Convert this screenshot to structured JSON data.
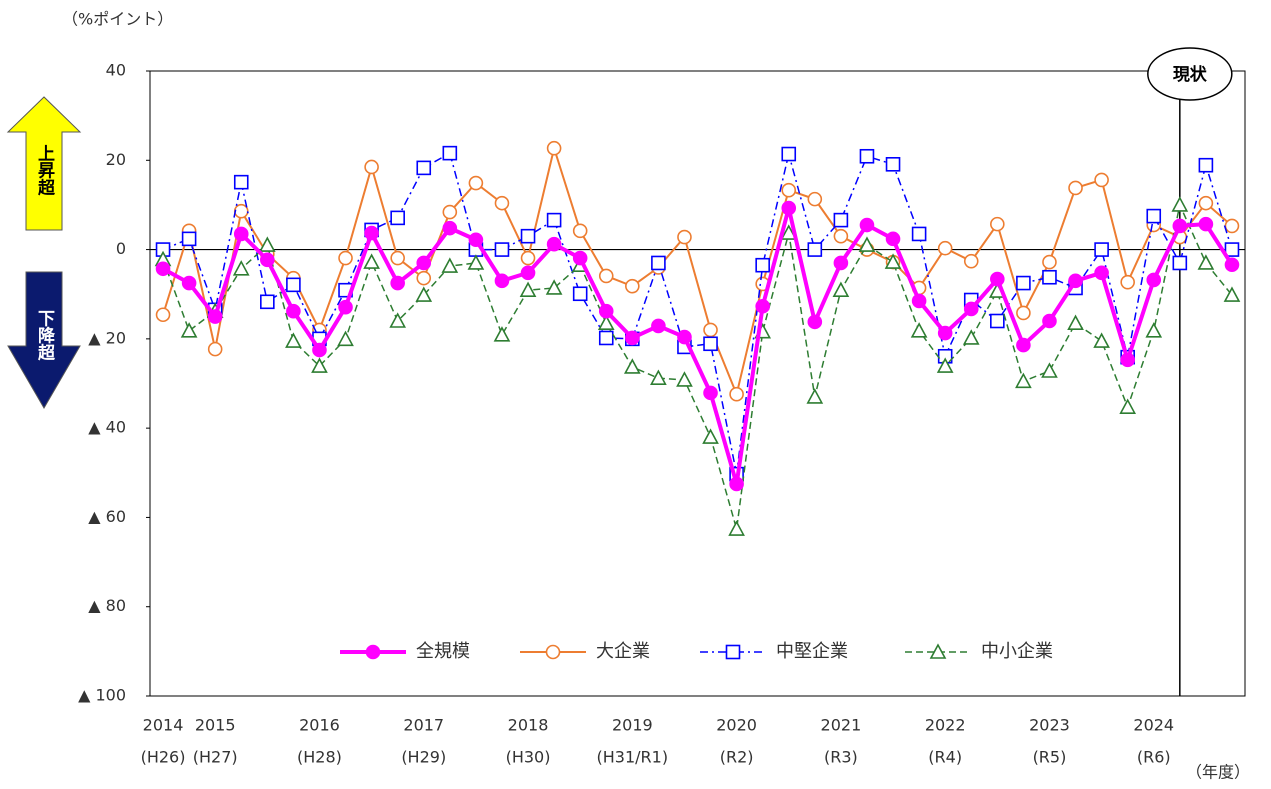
{
  "chart_data": {
    "type": "line",
    "y_label": "（%ポイント）",
    "x_label": "（年度）",
    "categories": [
      "2014",
      null,
      "2015",
      null,
      null,
      null,
      "2016",
      null,
      null,
      null,
      "2017",
      null,
      null,
      null,
      "2018",
      null,
      null,
      null,
      "2019",
      null,
      null,
      null,
      "2020",
      null,
      null,
      null,
      "2021",
      null,
      null,
      null,
      "2022",
      null,
      null,
      null,
      "2023",
      null,
      null,
      null,
      "2024",
      null,
      null,
      null
    ],
    "era_labels": [
      "(H26)",
      null,
      "(H27)",
      null,
      null,
      null,
      "(H28)",
      null,
      null,
      null,
      "(H29)",
      null,
      null,
      null,
      "(H30)",
      null,
      null,
      null,
      "(H31/R1)",
      null,
      null,
      null,
      "(R2)",
      null,
      null,
      null,
      "(R3)",
      null,
      null,
      null,
      "(R4)",
      null,
      null,
      null,
      "(R5)",
      null,
      null,
      null,
      "(R6)",
      null,
      null,
      null
    ],
    "ylim": [
      -100,
      40
    ],
    "yticks": [
      40,
      20,
      0,
      {
        "value": -20,
        "label": "▲ 20"
      },
      {
        "value": -40,
        "label": "▲ 40"
      },
      {
        "value": -60,
        "label": "▲ 60"
      },
      {
        "value": -80,
        "label": "▲ 80"
      },
      {
        "value": -100,
        "label": "▲ 100"
      }
    ],
    "zero_line": true,
    "annotation": {
      "label": "現状",
      "category_index": 39
    },
    "up_label": "上昇超",
    "down_label": "下降超",
    "legend": "bottom",
    "series": [
      {
        "name": "全規模",
        "color": "#ff00ff",
        "marker": "filled-circle",
        "dash": "solid",
        "width": 4,
        "values": [
          -4.3,
          -7.5,
          -15,
          3.5,
          -2.3,
          -13.8,
          -22.5,
          -12.9,
          3.7,
          -7.5,
          -3,
          4.8,
          2.2,
          -7,
          -5.2,
          1.2,
          -1.9,
          -13.8,
          -19.8,
          -17.1,
          -19.6,
          -32.1,
          -52.5,
          -12.7,
          9.3,
          -16.2,
          -3,
          5.5,
          2.4,
          -11.5,
          -18.7,
          -13.3,
          -6.6,
          -21.4,
          -16,
          -7,
          -5.2,
          -24.7,
          -6.8,
          5.3,
          5.7,
          -3.4
        ]
      },
      {
        "name": "大企業",
        "color": "#ed7d31",
        "marker": "open-circle",
        "dash": "solid",
        "width": 2,
        "values": [
          -14.6,
          4.2,
          -22.3,
          8.6,
          -1,
          -6.4,
          -18,
          -1.9,
          18.5,
          -1.9,
          -6.4,
          8.4,
          14.9,
          10.4,
          -1.9,
          22.7,
          4.2,
          -5.9,
          -8.2,
          -4,
          2.8,
          -18,
          -32.4,
          -7.7,
          13.3,
          11.3,
          3,
          0,
          -2.8,
          -8.6,
          0.3,
          -2.6,
          5.7,
          -14.2,
          -2.8,
          13.8,
          15.6,
          -7.3,
          5.5,
          2.8,
          10.4,
          5.3
        ]
      },
      {
        "name": "中堅企業",
        "color": "#0000ff",
        "marker": "open-square",
        "dash": "dash-dot",
        "width": 1.5,
        "values": [
          0,
          2.4,
          -13.5,
          15.1,
          -11.7,
          -7.9,
          -20,
          -9.1,
          4.4,
          7.1,
          18.3,
          21.6,
          0,
          0,
          3,
          6.6,
          -9.9,
          -19.8,
          -20,
          -3,
          -21.8,
          -21.1,
          -50.3,
          -3.5,
          21.4,
          0,
          6.6,
          20.9,
          19.1,
          3.5,
          -23.9,
          -11.3,
          -16,
          -7.5,
          -6.2,
          -8.6,
          0,
          -24.1,
          7.5,
          -3,
          18.9,
          0
        ]
      },
      {
        "name": "中小企業",
        "color": "#2e7d32",
        "marker": "open-triangle",
        "dash": "dash",
        "width": 1.5,
        "values": [
          -2.2,
          -18.2,
          -13.8,
          -4.3,
          1,
          -20.5,
          -26.1,
          -20.1,
          -2.8,
          -16,
          -10.2,
          -3.7,
          -3,
          -19.1,
          -9.1,
          -8.6,
          -3.5,
          -16.5,
          -26.3,
          -28.8,
          -29.2,
          -42,
          -62.6,
          -18.4,
          3.7,
          -33,
          -9.1,
          1,
          -2.8,
          -18.2,
          -26.1,
          -19.8,
          -9.3,
          -29.5,
          -27.2,
          -16.5,
          -20.5,
          -35.3,
          -18.2,
          10,
          -3,
          -10.2
        ]
      }
    ]
  }
}
